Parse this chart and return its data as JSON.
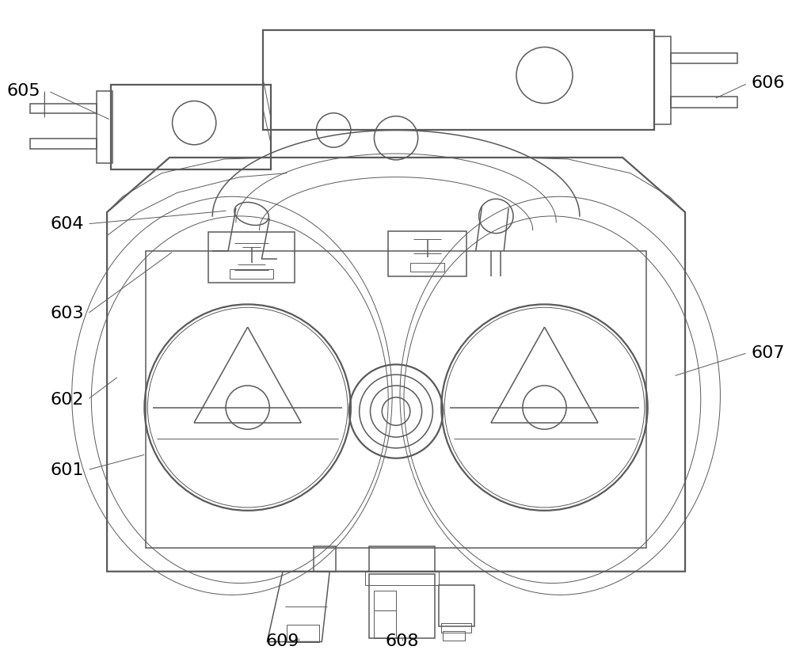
{
  "bg_color": "#ffffff",
  "line_color": "#5a5a5a",
  "label_color": "#000000",
  "label_fontsize": 16,
  "lw_thin": 0.7,
  "lw_med": 1.1,
  "lw_thick": 1.6,
  "figsize": [
    10.0,
    8.26
  ],
  "dpi": 100
}
